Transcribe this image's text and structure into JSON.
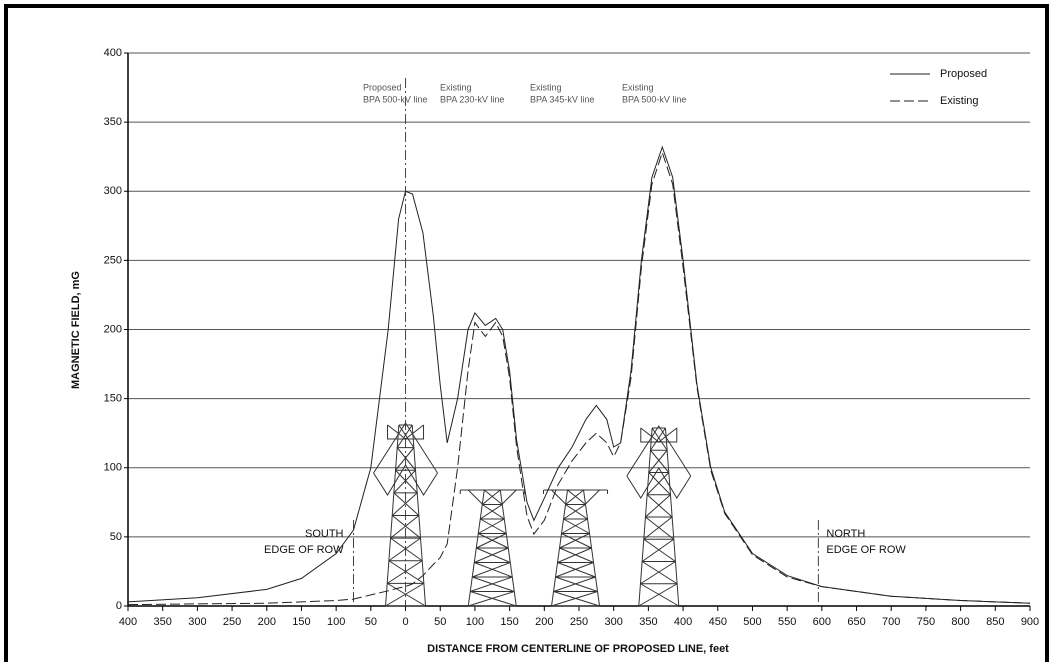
{
  "chart_data": {
    "type": "line",
    "x_label": "DISTANCE FROM CENTERLINE OF PROPOSED LINE, feet",
    "y_label": "MAGNETIC FIELD, mG",
    "x": [
      -400,
      -300,
      -200,
      -150,
      -100,
      -75,
      -50,
      -25,
      -10,
      0,
      10,
      25,
      40,
      50,
      60,
      75,
      90,
      100,
      115,
      130,
      140,
      150,
      160,
      175,
      185,
      200,
      220,
      240,
      260,
      275,
      290,
      300,
      310,
      325,
      340,
      355,
      370,
      385,
      400,
      420,
      440,
      460,
      500,
      550,
      600,
      700,
      800,
      900
    ],
    "series": [
      {
        "name": "Proposed",
        "color": "#222222",
        "line_style": "solid",
        "values": [
          3,
          6,
          12,
          20,
          38,
          55,
          100,
          200,
          280,
          300,
          298,
          270,
          210,
          160,
          118,
          150,
          200,
          212,
          203,
          208,
          200,
          170,
          120,
          75,
          62,
          78,
          100,
          115,
          135,
          145,
          135,
          115,
          118,
          170,
          250,
          310,
          332,
          310,
          250,
          160,
          100,
          68,
          38,
          22,
          14,
          7,
          4,
          2
        ]
      },
      {
        "name": "Existing",
        "color": "#222222",
        "line_style": "dashed",
        "values": [
          1,
          1.5,
          2,
          3,
          4,
          5,
          8,
          11,
          13,
          14,
          16,
          22,
          30,
          35,
          45,
          100,
          170,
          205,
          195,
          205,
          195,
          165,
          115,
          65,
          52,
          62,
          88,
          105,
          118,
          125,
          118,
          108,
          118,
          165,
          245,
          305,
          328,
          305,
          245,
          158,
          98,
          67,
          37,
          21,
          14,
          7,
          4,
          2
        ]
      }
    ],
    "xlim": [
      -400,
      900
    ],
    "xticks": [
      {
        "value": -400,
        "label": "400"
      },
      {
        "value": -350,
        "label": "350"
      },
      {
        "value": -300,
        "label": "300"
      },
      {
        "value": -250,
        "label": "250"
      },
      {
        "value": -200,
        "label": "200"
      },
      {
        "value": -150,
        "label": "150"
      },
      {
        "value": -100,
        "label": "100"
      },
      {
        "value": -50,
        "label": "50"
      },
      0,
      50,
      100,
      150,
      200,
      250,
      300,
      350,
      400,
      450,
      500,
      550,
      600,
      650,
      700,
      750,
      800,
      850,
      900
    ],
    "ylim": [
      0,
      400
    ],
    "yticks": [
      0,
      50,
      100,
      150,
      200,
      250,
      300,
      350,
      400
    ],
    "grid": true,
    "legend": "upper right",
    "vertical_lines": [
      {
        "x": 0
      },
      {
        "x": -75,
        "label_lines": [
          "SOUTH",
          "EDGE OF ROW"
        ]
      },
      {
        "x": 595,
        "label_lines": [
          "NORTH",
          "EDGE OF ROW"
        ]
      }
    ],
    "tower_labels": [
      {
        "lines": [
          "Proposed",
          "BPA 500-kV line"
        ]
      },
      {
        "lines": [
          "Existing",
          "BPA 230-kV line"
        ]
      },
      {
        "lines": [
          "Existing",
          "BPA 345-kV line"
        ]
      },
      {
        "lines": [
          "Existing",
          "BPA 500-kV line"
        ]
      }
    ]
  }
}
